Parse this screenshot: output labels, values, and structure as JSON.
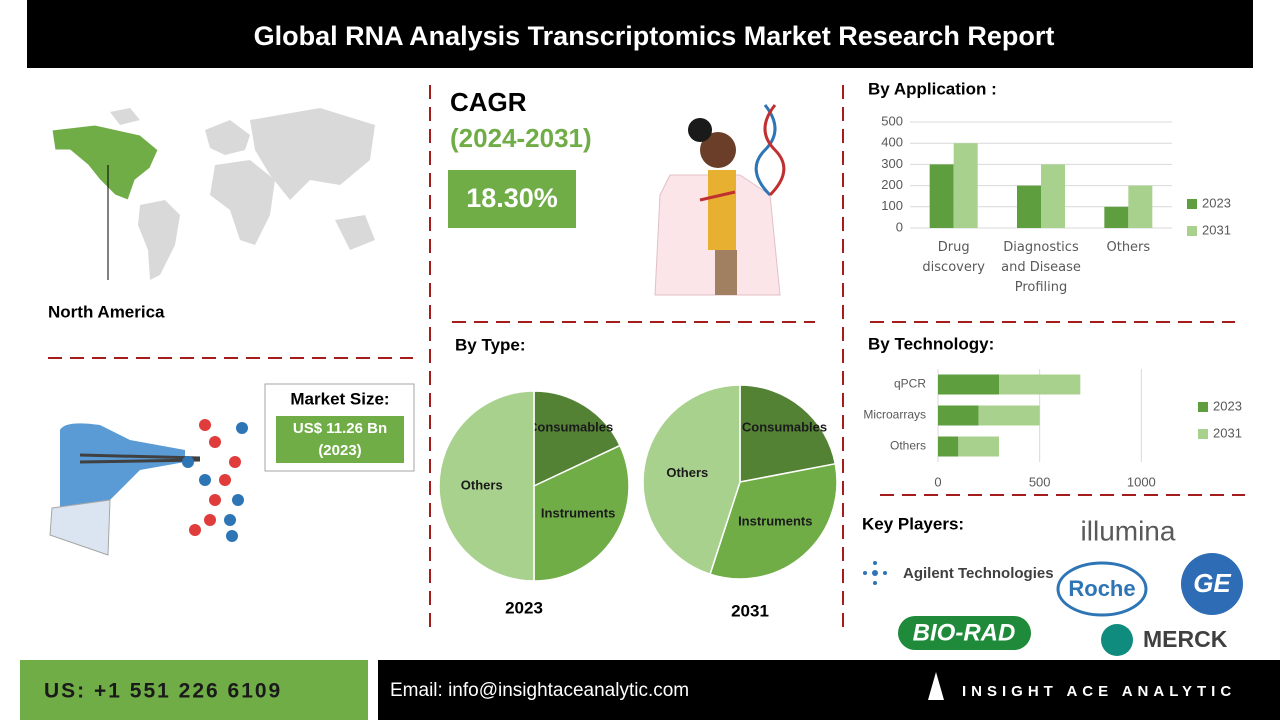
{
  "header": {
    "title": "Global RNA Analysis  Transcriptomics Market Research Report"
  },
  "region": {
    "label": "North America"
  },
  "market_size": {
    "label": "Market Size:",
    "value": "US$ 11.26 Bn",
    "year": "(2023)"
  },
  "cagr": {
    "label": "CAGR",
    "period": "(2024-2031)",
    "value": "18.30%"
  },
  "type_section": {
    "title": "By Type:"
  },
  "key_players": {
    "title": "Key Players:",
    "companies": [
      "illumina",
      "Agilent Technologies",
      "Roche",
      "GE",
      "BIO-RAD",
      "MERCK"
    ]
  },
  "footer": {
    "phone": "US: +1 551 226 6109",
    "email": "Email: info@insightaceanalytic.com",
    "brand": "INSIGHT ACE ANALYTIC"
  },
  "chart_data": [
    {
      "type": "bar",
      "title": "By Application :",
      "categories": [
        "Drug discovery",
        "Diagnostics and Disease Profiling",
        "Others"
      ],
      "series": [
        {
          "name": "2023",
          "color": "#5f9e3f",
          "values": [
            300,
            200,
            100
          ]
        },
        {
          "name": "2031",
          "color": "#a9d18e",
          "values": [
            400,
            300,
            200
          ]
        }
      ],
      "ylim": [
        0,
        500
      ],
      "yticks": [
        0,
        100,
        200,
        300,
        400,
        500
      ],
      "grid": true,
      "legend": "right"
    },
    {
      "type": "hbar",
      "title": "By  Technology:",
      "stacked": true,
      "categories": [
        "qPCR",
        "Microarrays",
        "Others"
      ],
      "series": [
        {
          "name": "2023",
          "color": "#5f9e3f",
          "values": [
            300,
            200,
            100
          ]
        },
        {
          "name": "2031",
          "color": "#a9d18e",
          "values": [
            400,
            300,
            200
          ]
        }
      ],
      "xlim": [
        0,
        1200
      ],
      "xticks": [
        0,
        500,
        1000
      ],
      "grid": true,
      "legend": "right"
    },
    {
      "type": "pie",
      "label": "2023",
      "categories": [
        "Consumables",
        "Instruments",
        "Others"
      ],
      "values": [
        18,
        32,
        50
      ],
      "colors": [
        "#548235",
        "#70ad47",
        "#a9d18e"
      ]
    },
    {
      "type": "pie",
      "label": "2031",
      "categories": [
        "Consumables",
        "Instruments",
        "Others"
      ],
      "values": [
        22,
        33,
        45
      ],
      "colors": [
        "#548235",
        "#70ad47",
        "#a9d18e"
      ]
    }
  ]
}
